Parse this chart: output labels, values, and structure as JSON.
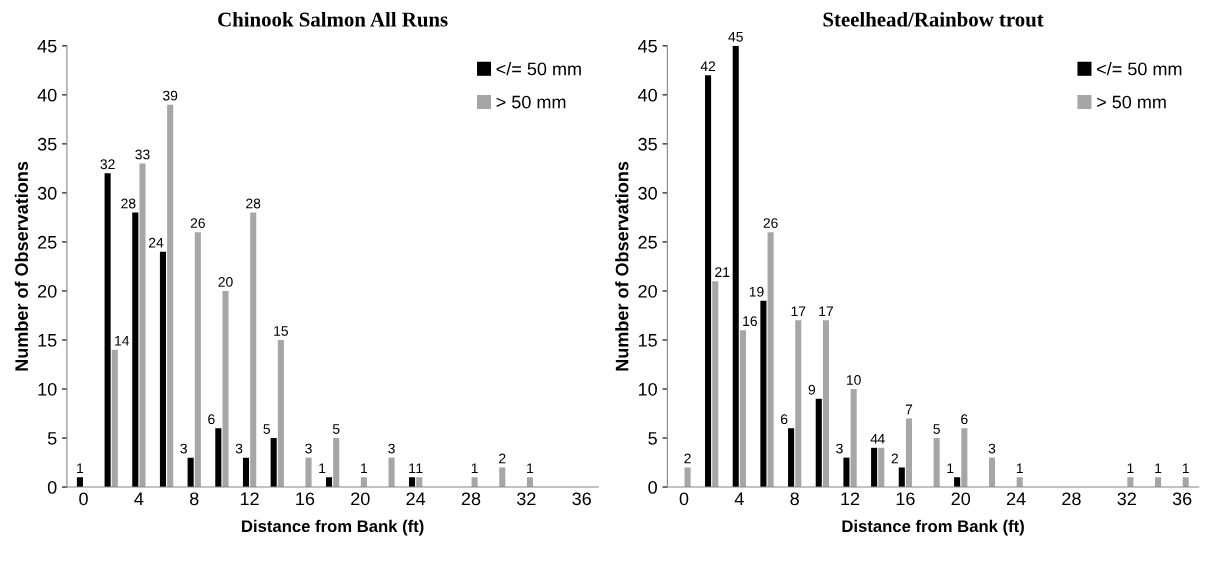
{
  "chart_data": [
    {
      "type": "bar",
      "title": "Chinook Salmon All Runs",
      "xlabel": "Distance from Bank (ft)",
      "ylabel": "Number of Observations",
      "categories": [
        "0",
        null,
        "4",
        null,
        "8",
        null,
        "12",
        null,
        "16",
        null,
        "20",
        null,
        "24",
        null,
        "28",
        null,
        "32",
        null,
        "36"
      ],
      "series": [
        {
          "name": "</= 50 mm",
          "color": "#000000",
          "values": [
            1,
            32,
            28,
            24,
            3,
            6,
            3,
            5,
            null,
            1,
            null,
            null,
            1,
            null,
            null,
            null,
            null,
            null,
            null
          ]
        },
        {
          "name": "> 50 mm",
          "color": "#a6a6a6",
          "values": [
            null,
            14,
            33,
            39,
            26,
            20,
            28,
            15,
            3,
            5,
            1,
            3,
            1,
            null,
            1,
            2,
            1,
            null,
            null
          ]
        }
      ],
      "ylim": [
        0,
        45
      ],
      "yticks": [
        0,
        5,
        10,
        15,
        20,
        25,
        30,
        35,
        40,
        45
      ],
      "grid": false,
      "legend": "top right",
      "data_labels": true
    },
    {
      "type": "bar",
      "title": "Steelhead/Rainbow trout",
      "xlabel": "Distance from Bank (ft)",
      "ylabel": "Number of Observations",
      "categories": [
        "0",
        null,
        "4",
        null,
        "8",
        null,
        "12",
        null,
        "16",
        null,
        "20",
        null,
        "24",
        null,
        "28",
        null,
        "32",
        null,
        "36"
      ],
      "series": [
        {
          "name": "</= 50 mm",
          "color": "#000000",
          "values": [
            null,
            42,
            45,
            19,
            6,
            9,
            3,
            4,
            2,
            null,
            1,
            null,
            null,
            null,
            null,
            null,
            null,
            null,
            null
          ]
        },
        {
          "name": "> 50 mm",
          "color": "#a6a6a6",
          "values": [
            2,
            21,
            16,
            26,
            17,
            17,
            10,
            4,
            7,
            5,
            6,
            3,
            1,
            null,
            null,
            null,
            1,
            1,
            1
          ]
        }
      ],
      "ylim": [
        0,
        45
      ],
      "yticks": [
        0,
        5,
        10,
        15,
        20,
        25,
        30,
        35,
        40,
        45
      ],
      "grid": false,
      "legend": "top right",
      "data_labels": true
    }
  ]
}
